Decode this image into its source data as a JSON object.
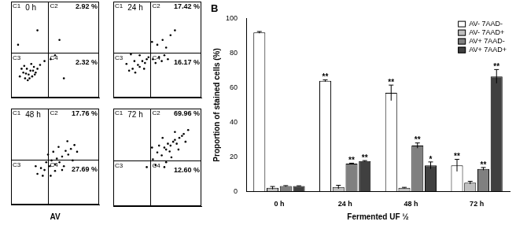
{
  "chart_data": [
    {
      "type": "scatter",
      "title": "0 h",
      "x": [
        10,
        14,
        16,
        18,
        20,
        22,
        24,
        26,
        28,
        30,
        15,
        19,
        23,
        27,
        21,
        17,
        25,
        12,
        33,
        38,
        45,
        50,
        8,
        55,
        30,
        60
      ],
      "values": [
        22,
        26,
        20,
        30,
        24,
        28,
        22,
        32,
        26,
        30,
        33,
        18,
        35,
        24,
        20,
        25,
        28,
        30,
        34,
        38,
        40,
        44,
        55,
        60,
        70,
        20
      ],
      "color": "#000000",
      "xlim": [
        0,
        100
      ],
      "ylim": [
        0,
        100
      ],
      "xticks": [],
      "yticks": [],
      "tick_labels": false,
      "grid": false,
      "quadrant_lines": {
        "x": 42,
        "y": 47
      },
      "quadrant_labels": [
        "C1",
        "C2",
        "C3",
        "C4"
      ],
      "quadrant_values": [
        null,
        2.92,
        null,
        2.32
      ],
      "quadrant_value_labels": [
        null,
        "2.92 %",
        null,
        "2.32 %"
      ]
    },
    {
      "type": "scatter",
      "title": "24 h",
      "x": [
        18,
        22,
        25,
        28,
        30,
        33,
        36,
        38,
        40,
        24,
        30,
        35,
        45,
        48,
        52,
        55,
        58,
        62,
        50,
        56,
        60,
        65,
        20,
        15,
        44,
        70
      ],
      "values": [
        28,
        30,
        26,
        34,
        32,
        38,
        36,
        40,
        42,
        38,
        44,
        30,
        40,
        36,
        42,
        38,
        44,
        40,
        55,
        60,
        52,
        65,
        45,
        35,
        58,
        70
      ],
      "color": "#000000",
      "xlim": [
        0,
        100
      ],
      "ylim": [
        0,
        100
      ],
      "xticks": [],
      "yticks": [],
      "tick_labels": false,
      "grid": false,
      "quadrant_lines": {
        "x": 42,
        "y": 47
      },
      "quadrant_labels": [
        "C1",
        "C2",
        "C3",
        "C4"
      ],
      "quadrant_values": [
        null,
        17.42,
        null,
        16.17
      ],
      "quadrant_value_labels": [
        null,
        "17.42 %",
        null,
        "16.17 %"
      ]
    },
    {
      "type": "scatter",
      "title": "48 h",
      "x_label": "AV",
      "x": [
        30,
        34,
        38,
        40,
        44,
        46,
        50,
        52,
        55,
        58,
        60,
        62,
        65,
        68,
        48,
        54,
        42,
        36,
        70,
        72,
        58,
        64,
        50,
        28,
        75,
        45
      ],
      "values": [
        32,
        38,
        36,
        44,
        40,
        46,
        42,
        48,
        44,
        50,
        40,
        56,
        52,
        58,
        55,
        60,
        52,
        30,
        46,
        62,
        36,
        66,
        35,
        40,
        55,
        30
      ],
      "color": "#000000",
      "xlim": [
        0,
        100
      ],
      "ylim": [
        0,
        100
      ],
      "xticks": [],
      "yticks": [],
      "tick_labels": false,
      "grid": false,
      "quadrant_lines": {
        "x": 42,
        "y": 47
      },
      "quadrant_labels": [
        "C1",
        "C2",
        "C3",
        "C4"
      ],
      "quadrant_values": [
        null,
        17.76,
        null,
        27.69
      ],
      "quadrant_value_labels": [
        null,
        "17.76 %",
        null,
        "27.69 %"
      ]
    },
    {
      "type": "scatter",
      "title": "72 h",
      "x": [
        45,
        50,
        55,
        58,
        60,
        62,
        65,
        68,
        70,
        72,
        75,
        78,
        80,
        60,
        66,
        52,
        48,
        74,
        82,
        56,
        64,
        70,
        44,
        38,
        85,
        58
      ],
      "values": [
        48,
        55,
        52,
        60,
        58,
        64,
        62,
        66,
        68,
        64,
        70,
        72,
        74,
        45,
        50,
        62,
        42,
        58,
        66,
        70,
        56,
        76,
        60,
        40,
        78,
        40
      ],
      "color": "#000000",
      "xlim": [
        0,
        100
      ],
      "ylim": [
        0,
        100
      ],
      "xticks": [],
      "yticks": [],
      "tick_labels": false,
      "grid": false,
      "quadrant_lines": {
        "x": 42,
        "y": 47
      },
      "quadrant_labels": [
        "C1",
        "C2",
        "C3",
        "C4"
      ],
      "quadrant_values": [
        null,
        69.96,
        null,
        12.6
      ],
      "quadrant_value_labels": [
        null,
        "69.96 %",
        null,
        "12.60 %"
      ]
    },
    {
      "type": "bar",
      "title": "B",
      "categories": [
        "0 h",
        "24 h",
        "48 h",
        "72 h"
      ],
      "x_label": "Fermented UF ½",
      "y_label": "Proportion of stained cells (%)",
      "ylim": [
        0,
        100
      ],
      "yticks": [
        0,
        20,
        40,
        60,
        80,
        100
      ],
      "grid": false,
      "legend": "top right",
      "series": [
        {
          "name": "AV- 7AAD-",
          "color": "#ffffff",
          "values": [
            92,
            64,
            57,
            15
          ],
          "errors": [
            0.5,
            0.5,
            4.5,
            3.5
          ],
          "significance": [
            null,
            "**",
            "**",
            "**"
          ]
        },
        {
          "name": "AV- 7AAD+",
          "color": "#c0c0c0",
          "values": [
            2,
            2.5,
            2,
            5
          ],
          "errors": [
            0.8,
            1,
            0.3,
            0.8
          ],
          "significance": [
            null,
            null,
            null,
            null
          ]
        },
        {
          "name": "AV+ 7AAD-",
          "color": "#808080",
          "values": [
            3,
            16,
            26.5,
            13
          ],
          "errors": [
            0.3,
            0.3,
            1.5,
            0.8
          ],
          "significance": [
            null,
            "**",
            "**",
            "**"
          ]
        },
        {
          "name": "AV+ 7AAD+",
          "color": "#404040",
          "values": [
            3,
            17.5,
            15,
            66.5
          ],
          "errors": [
            0.2,
            0.3,
            2,
            4
          ],
          "significance": [
            null,
            "**",
            "*",
            "**"
          ]
        }
      ]
    }
  ]
}
